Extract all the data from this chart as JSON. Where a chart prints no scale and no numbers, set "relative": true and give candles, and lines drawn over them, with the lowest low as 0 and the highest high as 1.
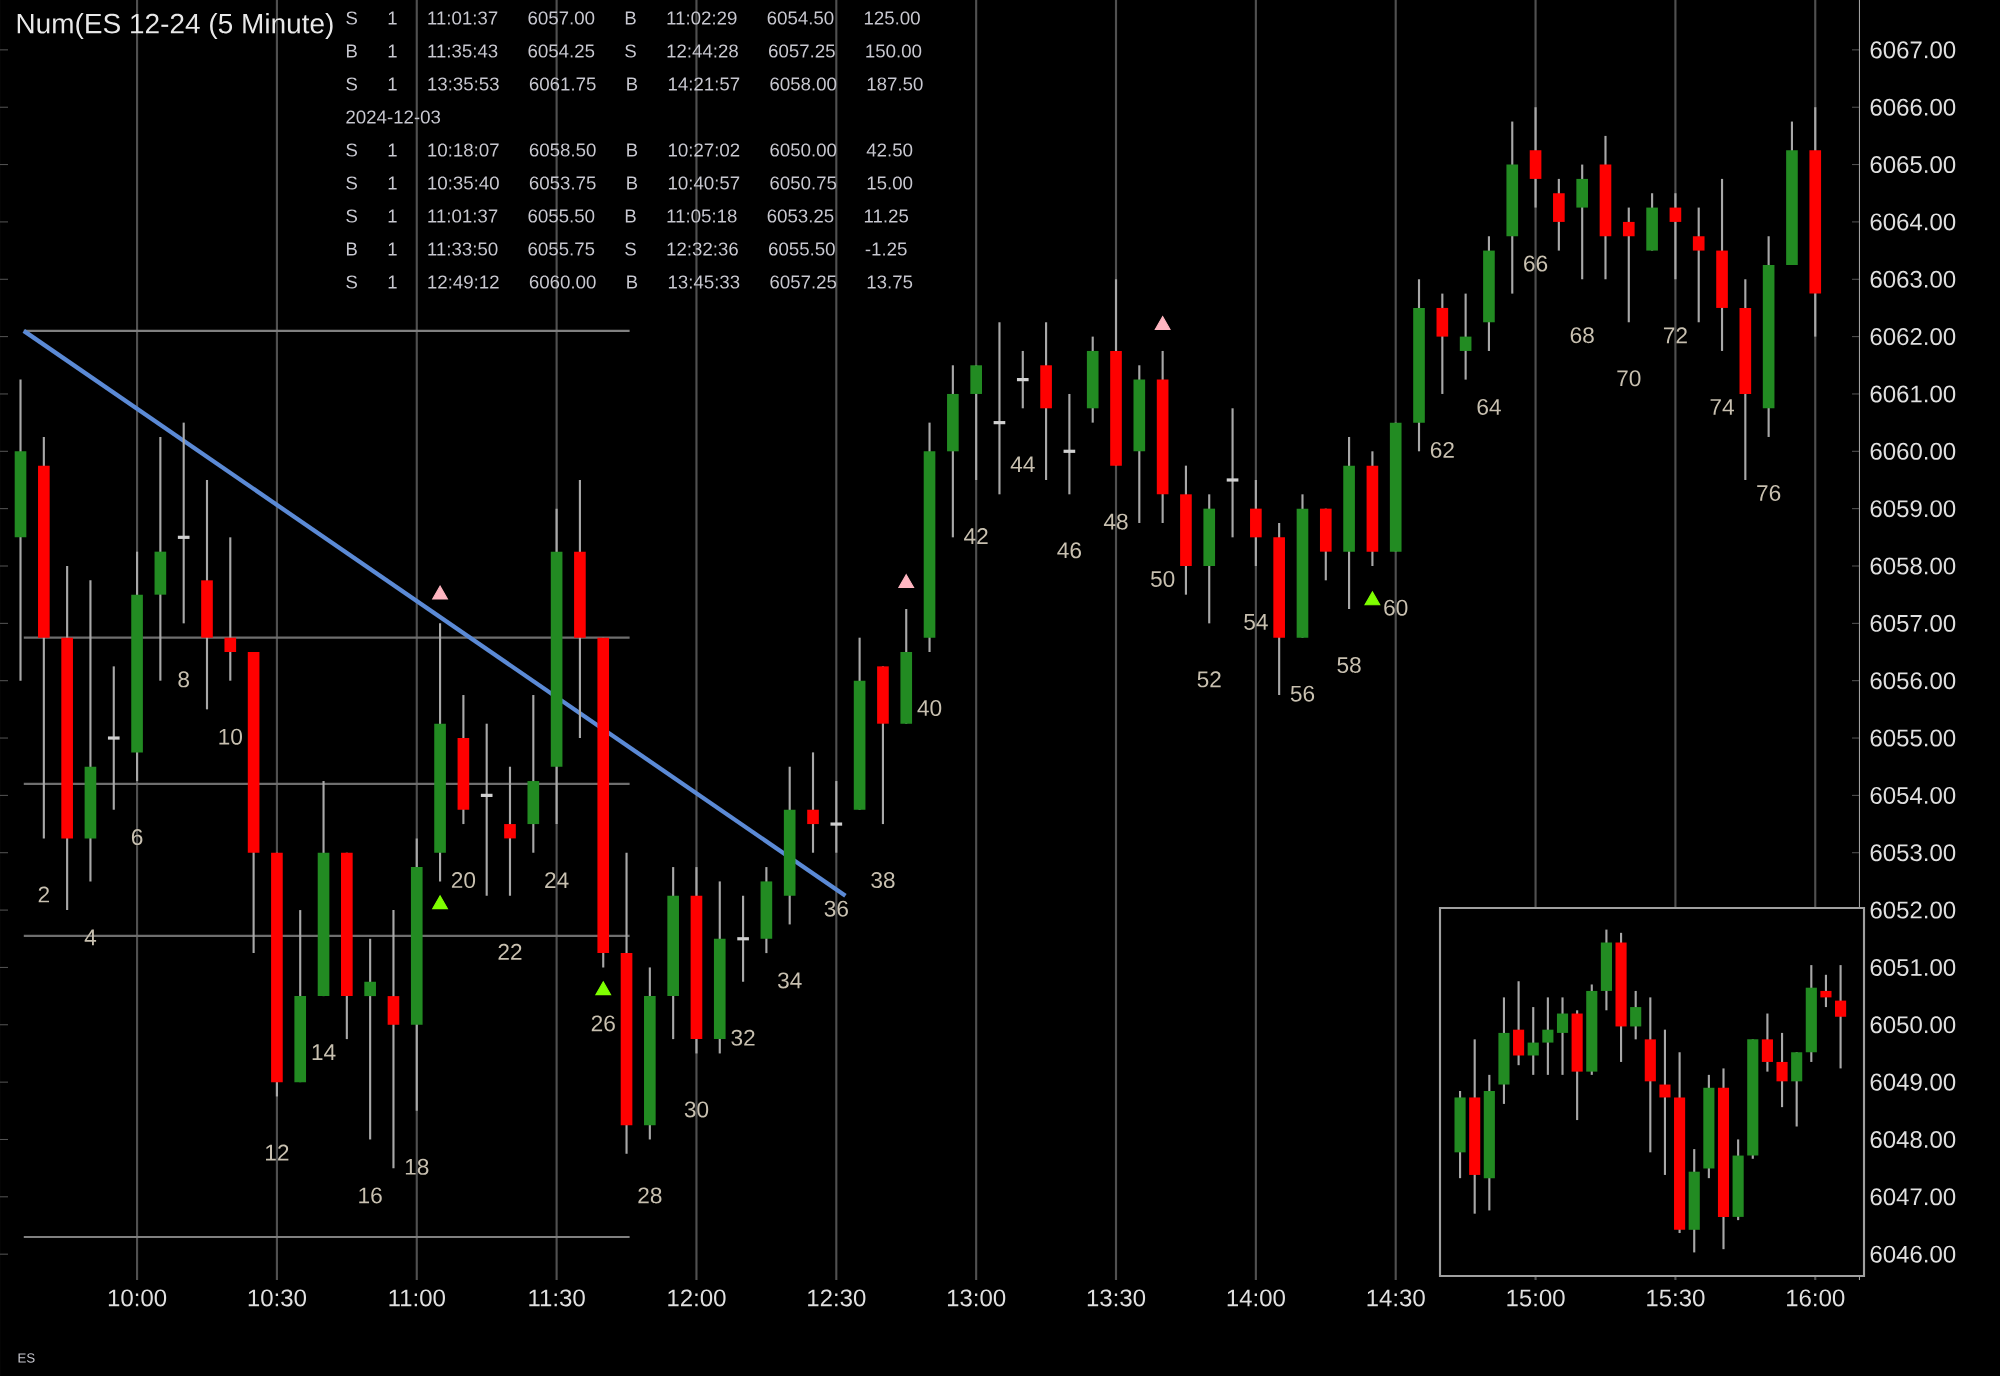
{
  "chart_data": [
    {
      "type": "candlestick",
      "title": "Num(ES 12-24 (5 Minute)",
      "x": [
        9.5833,
        9.6667,
        9.75,
        9.8333,
        9.9167,
        10.0,
        10.0833,
        10.1667,
        10.25,
        10.3333,
        10.4167,
        10.5,
        10.5833,
        10.6667,
        10.75,
        10.8333,
        10.9167,
        11.0,
        11.0833,
        11.1667,
        11.25,
        11.3333,
        11.4167,
        11.5,
        11.5833,
        11.6667,
        11.75,
        11.8333,
        11.9167,
        12.0,
        12.0833,
        12.1667,
        12.25,
        12.3333,
        12.4167,
        12.5,
        12.5833,
        12.6667,
        12.75,
        12.8333,
        12.9167,
        13.0,
        13.0833,
        13.1667,
        13.25,
        13.3333,
        13.4167,
        13.5,
        13.5833,
        13.6667,
        13.75,
        13.8333,
        13.9167,
        14.0,
        14.0833,
        14.1667,
        14.25,
        14.3333,
        14.4167,
        14.5,
        14.5833,
        14.6667,
        14.75,
        14.8333,
        14.9167,
        15.0,
        15.0833,
        15.1667,
        15.25,
        15.3333,
        15.4167,
        15.5,
        15.5833,
        15.6667,
        15.75,
        15.8333,
        15.9167,
        16.0
      ],
      "ohlc": [
        [
          6058.5,
          6061.25,
          6056.0,
          6060.0
        ],
        [
          6059.75,
          6060.25,
          6053.25,
          6056.75
        ],
        [
          6056.75,
          6058.0,
          6052.0,
          6053.25
        ],
        [
          6053.25,
          6057.75,
          6052.5,
          6054.5
        ],
        [
          6055.0,
          6056.25,
          6053.75,
          6055.0
        ],
        [
          6054.75,
          6058.25,
          6054.25,
          6057.5
        ],
        [
          6057.5,
          6060.25,
          6056.0,
          6058.25
        ],
        [
          6058.5,
          6060.5,
          6057.0,
          6058.5
        ],
        [
          6057.75,
          6059.5,
          6055.5,
          6056.75
        ],
        [
          6056.75,
          6058.5,
          6056.0,
          6056.5
        ],
        [
          6056.5,
          6056.5,
          6051.25,
          6053.0
        ],
        [
          6053.0,
          6053.0,
          6048.75,
          6049.0
        ],
        [
          6049.0,
          6052.0,
          6049.0,
          6050.5
        ],
        [
          6050.5,
          6054.25,
          6050.5,
          6053.0
        ],
        [
          6053.0,
          6053.0,
          6049.75,
          6050.5
        ],
        [
          6050.5,
          6051.5,
          6048.0,
          6050.75
        ],
        [
          6050.5,
          6052.0,
          6047.5,
          6050.0
        ],
        [
          6050.0,
          6053.25,
          6048.5,
          6052.75
        ],
        [
          6053.0,
          6057.0,
          6052.5,
          6055.25
        ],
        [
          6055.0,
          6055.75,
          6053.5,
          6053.75
        ],
        [
          6054.0,
          6055.25,
          6052.25,
          6054.0
        ],
        [
          6053.5,
          6054.5,
          6052.25,
          6053.25
        ],
        [
          6053.5,
          6055.75,
          6053.0,
          6054.25
        ],
        [
          6054.5,
          6059.0,
          6053.5,
          6058.25
        ],
        [
          6058.25,
          6059.5,
          6055.0,
          6056.75
        ],
        [
          6056.75,
          6056.75,
          6051.0,
          6051.25
        ],
        [
          6051.25,
          6053.0,
          6047.75,
          6048.25
        ],
        [
          6048.25,
          6051.0,
          6048.0,
          6050.5
        ],
        [
          6050.5,
          6052.75,
          6049.75,
          6052.25
        ],
        [
          6052.25,
          6052.75,
          6049.5,
          6049.75
        ],
        [
          6049.75,
          6052.5,
          6049.5,
          6051.5
        ],
        [
          6051.5,
          6052.25,
          6050.75,
          6051.5
        ],
        [
          6051.5,
          6052.75,
          6051.25,
          6052.5
        ],
        [
          6052.25,
          6054.5,
          6051.75,
          6053.75
        ],
        [
          6053.75,
          6054.75,
          6053.0,
          6053.5
        ],
        [
          6053.5,
          6054.25,
          6053.0,
          6053.5
        ],
        [
          6053.75,
          6056.75,
          6053.75,
          6056.0
        ],
        [
          6056.25,
          6056.25,
          6053.5,
          6055.25
        ],
        [
          6055.25,
          6057.25,
          6055.25,
          6056.5
        ],
        [
          6056.75,
          6060.5,
          6056.5,
          6060.0
        ],
        [
          6060.0,
          6061.5,
          6058.5,
          6061.0
        ],
        [
          6061.0,
          6061.5,
          6059.5,
          6061.5
        ],
        [
          6060.5,
          6062.25,
          6059.25,
          6060.5
        ],
        [
          6061.25,
          6061.75,
          6060.75,
          6061.25
        ],
        [
          6061.5,
          6062.25,
          6059.5,
          6060.75
        ],
        [
          6060.0,
          6061.0,
          6059.25,
          6060.0
        ],
        [
          6060.75,
          6062.0,
          6060.5,
          6061.75
        ],
        [
          6061.75,
          6063.0,
          6059.75,
          6059.75
        ],
        [
          6060.0,
          6061.5,
          6058.75,
          6061.25
        ],
        [
          6061.25,
          6061.75,
          6058.75,
          6059.25
        ],
        [
          6059.25,
          6059.75,
          6057.5,
          6058.0
        ],
        [
          6058.0,
          6059.25,
          6057.0,
          6059.0
        ],
        [
          6059.5,
          6060.75,
          6058.5,
          6059.5
        ],
        [
          6059.0,
          6059.5,
          6058.0,
          6058.5
        ],
        [
          6058.5,
          6058.75,
          6055.75,
          6056.75
        ],
        [
          6056.75,
          6059.25,
          6056.75,
          6059.0
        ],
        [
          6059.0,
          6059.0,
          6057.75,
          6058.25
        ],
        [
          6058.25,
          6060.25,
          6057.25,
          6059.75
        ],
        [
          6059.75,
          6060.0,
          6058.0,
          6058.25
        ],
        [
          6058.25,
          6060.5,
          6058.25,
          6060.5
        ],
        [
          6060.5,
          6063.0,
          6060.0,
          6062.5
        ],
        [
          6062.5,
          6062.75,
          6061.0,
          6062.0
        ],
        [
          6061.75,
          6062.75,
          6061.25,
          6062.0
        ],
        [
          6062.25,
          6063.75,
          6061.75,
          6063.5
        ],
        [
          6063.75,
          6065.75,
          6062.75,
          6065.0
        ],
        [
          6065.25,
          6066.0,
          6064.25,
          6064.75
        ],
        [
          6064.5,
          6064.75,
          6063.5,
          6064.0
        ],
        [
          6064.25,
          6065.0,
          6063.0,
          6064.75
        ],
        [
          6065.0,
          6065.5,
          6063.0,
          6063.75
        ],
        [
          6064.0,
          6064.25,
          6062.25,
          6063.75
        ],
        [
          6063.5,
          6064.5,
          6063.5,
          6064.25
        ],
        [
          6064.25,
          6064.5,
          6063.0,
          6064.0
        ],
        [
          6063.75,
          6064.25,
          6062.25,
          6063.5
        ],
        [
          6063.5,
          6064.75,
          6061.75,
          6062.5
        ],
        [
          6062.5,
          6063.0,
          6059.5,
          6061.0
        ],
        [
          6060.75,
          6063.75,
          6060.25,
          6063.25
        ],
        [
          6063.25,
          6065.75,
          6063.25,
          6065.25
        ],
        [
          6065.25,
          6066.0,
          6062.0,
          6062.75
        ]
      ],
      "colors": [
        "#228b22",
        "#ff0000",
        "#ff0000",
        "#228b22",
        "#d0d0d0",
        "#228b22",
        "#228b22",
        "#d0d0d0",
        "#ff0000",
        "#ff0000",
        "#ff0000",
        "#ff0000",
        "#228b22",
        "#228b22",
        "#ff0000",
        "#228b22",
        "#ff0000",
        "#228b22",
        "#228b22",
        "#ff0000",
        "#d0d0d0",
        "#ff0000",
        "#228b22",
        "#228b22",
        "#ff0000",
        "#ff0000",
        "#ff0000",
        "#228b22",
        "#228b22",
        "#ff0000",
        "#228b22",
        "#d0d0d0",
        "#228b22",
        "#228b22",
        "#ff0000",
        "#d0d0d0",
        "#228b22",
        "#ff0000",
        "#228b22",
        "#228b22",
        "#228b22",
        "#228b22",
        "#d0d0d0",
        "#d0d0d0",
        "#ff0000",
        "#d0d0d0",
        "#228b22",
        "#ff0000",
        "#228b22",
        "#ff0000",
        "#ff0000",
        "#228b22",
        "#d0d0d0",
        "#ff0000",
        "#ff0000",
        "#228b22",
        "#ff0000",
        "#228b22",
        "#ff0000",
        "#228b22",
        "#228b22",
        "#ff0000",
        "#228b22",
        "#228b22",
        "#228b22",
        "#ff0000",
        "#ff0000",
        "#228b22",
        "#ff0000",
        "#ff0000",
        "#228b22",
        "#ff0000",
        "#ff0000",
        "#ff0000",
        "#ff0000",
        "#228b22",
        "#228b22",
        "#ff0000"
      ],
      "xlim": [
        9.51,
        16.16
      ],
      "ylim": [
        6045.55,
        6067.87
      ],
      "xticks": [
        {
          "value": 10,
          "label": "10:00"
        },
        {
          "value": 10.5,
          "label": "10:30"
        },
        {
          "value": 11,
          "label": "11:00"
        },
        {
          "value": 11.5,
          "label": "11:30"
        },
        {
          "value": 12,
          "label": "12:00"
        },
        {
          "value": 12.5,
          "label": "12:30"
        },
        {
          "value": 13,
          "label": "13:00"
        },
        {
          "value": 13.5,
          "label": "13:30"
        },
        {
          "value": 14,
          "label": "14:00"
        },
        {
          "value": 14.5,
          "label": "14:30"
        },
        {
          "value": 15,
          "label": "15:00"
        },
        {
          "value": 15.5,
          "label": "15:30"
        },
        {
          "value": 16,
          "label": "16:00"
        }
      ],
      "yticks": [
        {
          "value": 6046,
          "label": "6046.00"
        },
        {
          "value": 6047,
          "label": "6047.00"
        },
        {
          "value": 6048,
          "label": "6048.00"
        },
        {
          "value": 6049,
          "label": "6049.00"
        },
        {
          "value": 6050,
          "label": "6050.00"
        },
        {
          "value": 6051,
          "label": "6051.00"
        },
        {
          "value": 6052,
          "label": "6052.00"
        },
        {
          "value": 6053,
          "label": "6053.00"
        },
        {
          "value": 6054,
          "label": "6054.00"
        },
        {
          "value": 6055,
          "label": "6055.00"
        },
        {
          "value": 6056,
          "label": "6056.00"
        },
        {
          "value": 6057,
          "label": "6057.00"
        },
        {
          "value": 6058,
          "label": "6058.00"
        },
        {
          "value": 6059,
          "label": "6059.00"
        },
        {
          "value": 6060,
          "label": "6060.00"
        },
        {
          "value": 6061,
          "label": "6061.00"
        },
        {
          "value": 6062,
          "label": "6062.00"
        },
        {
          "value": 6063,
          "label": "6063.00"
        },
        {
          "value": 6064,
          "label": "6064.00"
        },
        {
          "value": 6065,
          "label": "6065.00"
        },
        {
          "value": 6066,
          "label": "6066.00"
        },
        {
          "value": 6067,
          "label": "6067.00"
        }
      ],
      "grid": "x",
      "series": [
        {
          "type": "line",
          "color": "#808080",
          "x": [
            9.595,
            11.761
          ],
          "values": [
            6062.1,
            6062.1
          ]
        },
        {
          "type": "line",
          "color": "#808080",
          "x": [
            9.595,
            11.761
          ],
          "values": [
            6046.3,
            6046.3
          ]
        },
        {
          "type": "line",
          "color": "#6e6e6e",
          "x": [
            9.595,
            11.761
          ],
          "values": [
            6056.75,
            6056.75
          ]
        },
        {
          "type": "line",
          "color": "#6e6e6e",
          "x": [
            9.595,
            11.761
          ],
          "values": [
            6054.2,
            6054.2
          ]
        },
        {
          "type": "line",
          "color": "#6e6e6e",
          "x": [
            9.595,
            11.761
          ],
          "values": [
            6051.55,
            6051.55
          ]
        },
        {
          "type": "line",
          "color": "#5b8ad6",
          "x": [
            9.595,
            12.5325
          ],
          "values": [
            6062.1,
            6052.25
          ]
        },
        {
          "type": "scatter",
          "marker": "triangle",
          "color": "#ffb6c1",
          "x": [
            11.0833,
            12.75,
            13.6667
          ],
          "values": [
            6057.5,
            6057.7,
            6062.2
          ]
        },
        {
          "type": "scatter",
          "marker": "triangle",
          "color": "#7fff00",
          "x": [
            11.0833,
            11.6667,
            14.4167
          ],
          "values": [
            6052.1,
            6050.6,
            6057.4
          ]
        }
      ],
      "annotations": [
        "S 1 11:01:37 6057.00 B 11:02:29 6054.50 125.00",
        "B 1 11:35:43 6054.25 S 12:44:28 6057.25 150.00",
        "S 1 13:35:53 6061.75 B 14:21:57 6058.00 187.50",
        "2024-12-03",
        "S 1 10:18:07 6058.50 B 10:27:02 6050.00 42.50",
        "S 1 10:35:40 6053.75 B 10:40:57 6050.75 15.00",
        "S 1 11:01:37 6055.50 B 11:05:18 6053.25 11.25",
        "B 1 11:33:50 6055.75 S 12:32:36 6055.50 -1.25",
        "S 1 12:49:12 6060.00 B 13:45:33 6057.25 13.75",
        "ES",
        {
          "text": "2",
          "x": 9.6667,
          "y": 6053.25
        },
        {
          "text": "4",
          "x": 9.8333,
          "y": 6052.5
        },
        {
          "text": "6",
          "x": 10.0,
          "y": 6054.25
        },
        {
          "text": "8",
          "x": 10.1667,
          "y": 6057.0
        },
        {
          "text": "10",
          "x": 10.3333,
          "y": 6056.0
        },
        {
          "text": "12",
          "x": 10.5,
          "y": 6048.75
        },
        {
          "text": "14",
          "x": 10.6667,
          "y": 6050.5
        },
        {
          "text": "16",
          "x": 10.8333,
          "y": 6048.0
        },
        {
          "text": "18",
          "x": 11.0,
          "y": 6048.5
        },
        {
          "text": "20",
          "x": 11.1667,
          "y": 6053.5
        },
        {
          "text": "22",
          "x": 11.3333,
          "y": 6052.25
        },
        {
          "text": "24",
          "x": 11.5,
          "y": 6053.5
        },
        {
          "text": "26",
          "x": 11.6667,
          "y": 6051.0
        },
        {
          "text": "28",
          "x": 11.8333,
          "y": 6048.0
        },
        {
          "text": "30",
          "x": 12.0,
          "y": 6049.5
        },
        {
          "text": "32",
          "x": 12.1667,
          "y": 6050.75
        },
        {
          "text": "34",
          "x": 12.3333,
          "y": 6051.75
        },
        {
          "text": "36",
          "x": 12.5,
          "y": 6053.0
        },
        {
          "text": "38",
          "x": 12.6667,
          "y": 6053.5
        },
        {
          "text": "40",
          "x": 12.8333,
          "y": 6056.5
        },
        {
          "text": "42",
          "x": 13.0,
          "y": 6059.5
        },
        {
          "text": "44",
          "x": 13.1667,
          "y": 6060.75
        },
        {
          "text": "46",
          "x": 13.3333,
          "y": 6059.25
        },
        {
          "text": "48",
          "x": 13.5,
          "y": 6059.75
        },
        {
          "text": "50",
          "x": 13.6667,
          "y": 6058.75
        },
        {
          "text": "52",
          "x": 13.8333,
          "y": 6057.0
        },
        {
          "text": "54",
          "x": 14.0,
          "y": 6058.0
        },
        {
          "text": "56",
          "x": 14.1667,
          "y": 6056.75
        },
        {
          "text": "58",
          "x": 14.3333,
          "y": 6057.25
        },
        {
          "text": "60",
          "x": 14.5,
          "y": 6058.25
        },
        {
          "text": "62",
          "x": 14.6667,
          "y": 6061.0
        },
        {
          "text": "64",
          "x": 14.8333,
          "y": 6061.75
        },
        {
          "text": "66",
          "x": 15.0,
          "y": 6064.25
        },
        {
          "text": "68",
          "x": 15.1667,
          "y": 6063.0
        },
        {
          "text": "70",
          "x": 15.3333,
          "y": 6062.25
        },
        {
          "text": "72",
          "x": 15.5,
          "y": 6063.0
        },
        {
          "text": "74",
          "x": 15.6667,
          "y": 6061.75
        },
        {
          "text": "76",
          "x": 15.8333,
          "y": 6060.25
        }
      ]
    },
    {
      "type": "candlestick",
      "relative": true,
      "categories": [
        null,
        null,
        null,
        null,
        null,
        null,
        null,
        null,
        null,
        null,
        null,
        null,
        null,
        null,
        null,
        null,
        null,
        null,
        null,
        null,
        null,
        null,
        null,
        null,
        null,
        null,
        null
      ],
      "ohlc": [
        [
          0.31,
          0.5,
          0.23,
          0.48
        ],
        [
          0.48,
          0.66,
          0.12,
          0.24
        ],
        [
          0.23,
          0.55,
          0.13,
          0.5
        ],
        [
          0.52,
          0.79,
          0.46,
          0.68
        ],
        [
          0.69,
          0.84,
          0.58,
          0.61
        ],
        [
          0.61,
          0.76,
          0.55,
          0.65
        ],
        [
          0.65,
          0.79,
          0.55,
          0.69
        ],
        [
          0.68,
          0.79,
          0.55,
          0.74
        ],
        [
          0.74,
          0.75,
          0.41,
          0.56
        ],
        [
          0.56,
          0.83,
          0.55,
          0.81
        ],
        [
          0.81,
          1.0,
          0.75,
          0.96
        ],
        [
          0.96,
          0.99,
          0.59,
          0.7
        ],
        [
          0.7,
          0.81,
          0.66,
          0.76
        ],
        [
          0.66,
          0.79,
          0.31,
          0.53
        ],
        [
          0.52,
          0.69,
          0.24,
          0.48
        ],
        [
          0.48,
          0.62,
          0.06,
          0.07
        ],
        [
          0.07,
          0.32,
          0.0,
          0.25
        ],
        [
          0.26,
          0.55,
          0.23,
          0.51
        ],
        [
          0.51,
          0.57,
          0.01,
          0.11
        ],
        [
          0.11,
          0.35,
          0.1,
          0.3
        ],
        [
          0.3,
          0.66,
          0.29,
          0.66
        ],
        [
          0.66,
          0.74,
          0.56,
          0.59
        ],
        [
          0.59,
          0.68,
          0.45,
          0.53
        ],
        [
          0.53,
          0.62,
          0.39,
          0.62
        ],
        [
          0.62,
          0.89,
          0.59,
          0.82
        ],
        [
          0.81,
          0.86,
          0.76,
          0.79
        ],
        [
          0.78,
          0.89,
          0.57,
          0.73
        ]
      ],
      "colors": [
        "#228b22",
        "#ff0000",
        "#228b22",
        "#228b22",
        "#ff0000",
        "#228b22",
        "#228b22",
        "#228b22",
        "#ff0000",
        "#228b22",
        "#228b22",
        "#ff0000",
        "#228b22",
        "#ff0000",
        "#ff0000",
        "#ff0000",
        "#228b22",
        "#228b22",
        "#ff0000",
        "#228b22",
        "#228b22",
        "#ff0000",
        "#ff0000",
        "#228b22",
        "#228b22",
        "#ff0000",
        "#ff0000"
      ]
    }
  ]
}
